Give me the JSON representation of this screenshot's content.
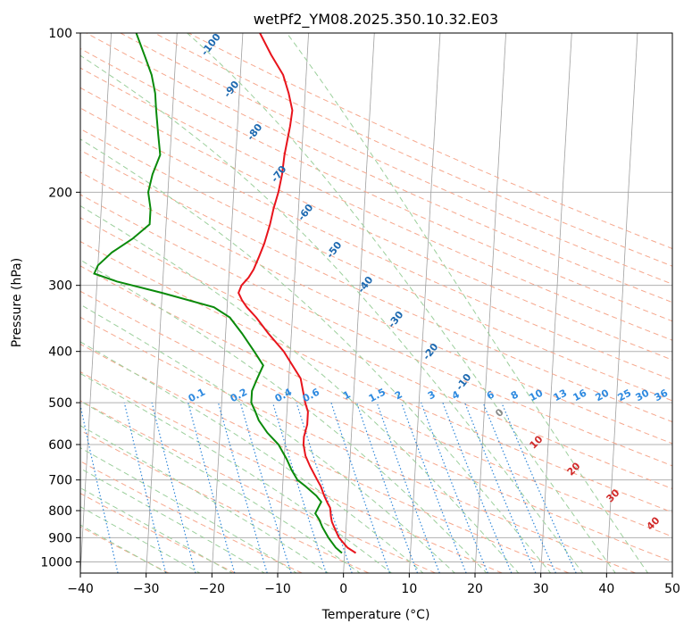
{
  "chart_data": {
    "type": "line",
    "title": "wetPf2_YM08.2025.350.10.32.E03",
    "xlabel": "Temperature (°C)",
    "ylabel": "Pressure (hPa)",
    "xlim": [
      -40,
      50
    ],
    "ylim": [
      1050,
      100
    ],
    "y_scale": "log",
    "skew": true,
    "grid": true,
    "x_ticks": [
      -40,
      -30,
      -20,
      -10,
      0,
      10,
      20,
      30,
      40,
      50
    ],
    "y_ticks": [
      100,
      200,
      300,
      400,
      500,
      600,
      700,
      800,
      900,
      1000
    ],
    "series": [
      {
        "role": "temperature",
        "color": "#e8141c",
        "points": [
          [
            962,
            1.7
          ],
          [
            940,
            0.4
          ],
          [
            900,
            -1.0
          ],
          [
            870,
            -1.6
          ],
          [
            840,
            -2.2
          ],
          [
            820,
            -2.4
          ],
          [
            805,
            -2.5
          ],
          [
            790,
            -2.6
          ],
          [
            775,
            -3.0
          ],
          [
            750,
            -3.6
          ],
          [
            720,
            -4.2
          ],
          [
            700,
            -4.8
          ],
          [
            660,
            -6.0
          ],
          [
            630,
            -6.8
          ],
          [
            600,
            -7.2
          ],
          [
            580,
            -7.2
          ],
          [
            550,
            -6.8
          ],
          [
            520,
            -6.8
          ],
          [
            500,
            -7.3
          ],
          [
            450,
            -8.2
          ],
          [
            400,
            -11.0
          ],
          [
            370,
            -13.5
          ],
          [
            345,
            -15.5
          ],
          [
            330,
            -17.0
          ],
          [
            320,
            -17.8
          ],
          [
            310,
            -18.4
          ],
          [
            300,
            -18.0
          ],
          [
            290,
            -17.0
          ],
          [
            280,
            -16.3
          ],
          [
            265,
            -15.6
          ],
          [
            250,
            -14.9
          ],
          [
            230,
            -14.2
          ],
          [
            215,
            -13.8
          ],
          [
            200,
            -13.2
          ],
          [
            185,
            -12.8
          ],
          [
            170,
            -12.6
          ],
          [
            150,
            -12.0
          ],
          [
            140,
            -11.8
          ],
          [
            130,
            -12.5
          ],
          [
            120,
            -13.5
          ],
          [
            110,
            -15.5
          ],
          [
            100,
            -17.4
          ]
        ]
      },
      {
        "role": "dewpoint",
        "color": "#0a8a0a",
        "points": [
          [
            962,
            -0.4
          ],
          [
            940,
            -1.4
          ],
          [
            900,
            -2.6
          ],
          [
            860,
            -3.6
          ],
          [
            830,
            -4.2
          ],
          [
            810,
            -4.8
          ],
          [
            790,
            -4.4
          ],
          [
            770,
            -4.0
          ],
          [
            750,
            -4.8
          ],
          [
            720,
            -6.5
          ],
          [
            700,
            -7.8
          ],
          [
            670,
            -8.8
          ],
          [
            640,
            -9.6
          ],
          [
            600,
            -11.0
          ],
          [
            570,
            -12.8
          ],
          [
            540,
            -14.2
          ],
          [
            520,
            -14.8
          ],
          [
            500,
            -15.5
          ],
          [
            475,
            -15.5
          ],
          [
            450,
            -14.8
          ],
          [
            425,
            -14.0
          ],
          [
            400,
            -15.5
          ],
          [
            370,
            -17.5
          ],
          [
            345,
            -19.5
          ],
          [
            330,
            -22.0
          ],
          [
            310,
            -30.0
          ],
          [
            295,
            -37.0
          ],
          [
            285,
            -40.5
          ],
          [
            275,
            -40.0
          ],
          [
            260,
            -38.0
          ],
          [
            245,
            -35.0
          ],
          [
            230,
            -32.5
          ],
          [
            215,
            -32.5
          ],
          [
            200,
            -33.0
          ],
          [
            185,
            -32.5
          ],
          [
            170,
            -31.5
          ],
          [
            155,
            -32.0
          ],
          [
            140,
            -32.5
          ],
          [
            130,
            -32.8
          ],
          [
            120,
            -33.5
          ],
          [
            112,
            -34.5
          ],
          [
            100,
            -36.2
          ]
        ]
      }
    ],
    "mixing_ratio_labels": [
      "0.1",
      "0.2",
      "0.4",
      "0.6",
      "1",
      "1.5",
      "2",
      "3",
      "4",
      "6",
      "8",
      "10",
      "13",
      "16",
      "20",
      "25",
      "30",
      "36"
    ],
    "mixing_ratio_values": [
      0.1,
      0.2,
      0.4,
      0.6,
      1,
      1.5,
      2,
      3,
      4,
      6,
      8,
      10,
      13,
      16,
      20,
      25,
      30,
      36
    ],
    "dry_adiabat_labels": [
      "-100",
      "-90",
      "-80",
      "-70",
      "-60",
      "-50",
      "-40",
      "-30",
      "-20",
      "-10"
    ],
    "dry_adiabat_values": [
      -100,
      -90,
      -80,
      -70,
      -60,
      -50,
      -40,
      -30,
      -20,
      -10
    ],
    "moist_adiabat_labels": [
      "0",
      "10",
      "20",
      "30",
      "40"
    ],
    "moist_adiabat_values": [
      0,
      10,
      20,
      30,
      40
    ],
    "colors": {
      "isotherm": "#a0a0a0",
      "isobar": "#b0b0b0",
      "dry_adiabat": "#f6a88e",
      "moist_adiabat": "#9ccf9c",
      "mixing_ratio": "#2f86d8",
      "dry_label": "#1d69b0",
      "mixing_label": "#2e8ae0",
      "moist_label_zero": "#8a8a8a",
      "moist_label": "#d12a2a",
      "extra_curve": "#d9c2a0"
    }
  }
}
